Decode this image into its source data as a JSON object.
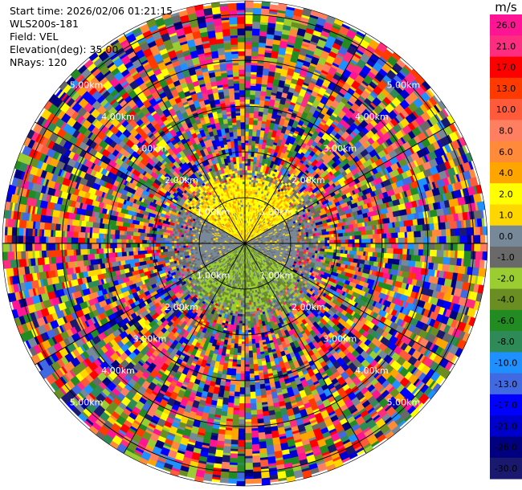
{
  "header": {
    "start_time": "Start time: 2026/02/06 01:21:15",
    "instrument": "WLS200s-181",
    "field": "Field: VEL",
    "elevation": "Elevation(deg): 35.00",
    "nrays": "NRays: 120"
  },
  "chart_data": {
    "type": "heatmap",
    "subtype": "radar-ppi",
    "max_range_km": 5.3,
    "range_rings": [
      {
        "range_km": 1.0,
        "label": "1.00km"
      },
      {
        "range_km": 2.0,
        "label": "2.00km"
      },
      {
        "range_km": 3.0,
        "label": "3.00km"
      },
      {
        "range_km": 4.0,
        "label": "4.00km"
      },
      {
        "range_km": 5.0,
        "label": "5.00km"
      }
    ],
    "n_rays": 120,
    "colorbar": {
      "unit": "m/s",
      "ticks": [
        "26.0",
        "21.0",
        "17.0",
        "13.0",
        "10.0",
        "8.0",
        "6.0",
        "4.0",
        "2.0",
        "1.0",
        "0.0",
        "-1.0",
        "-2.0",
        "-4.0",
        "-6.0",
        "-8.0",
        "-10.0",
        "-13.0",
        "-17.0",
        "-21.0",
        "-26.0",
        "-30.0"
      ],
      "colors": [
        "#ff1493",
        "#ff2d80",
        "#ff0000",
        "#ff3a00",
        "#ff5a3a",
        "#ff7f60",
        "#ff8a3a",
        "#ffa500",
        "#ffff00",
        "#ffd700",
        "#778899",
        "#696969",
        "#9acd32",
        "#6b8e23",
        "#228b22",
        "#2e8b57",
        "#1e90ff",
        "#4169e1",
        "#0000ff",
        "#0000cd",
        "#000080",
        "#191970"
      ]
    },
    "sectors": [
      {
        "azimuth_deg": [
          300,
          60
        ],
        "range_km": [
          0,
          1.6
        ],
        "mean_velocity": 3.0
      },
      {
        "azimuth_deg": [
          120,
          240
        ],
        "range_km": [
          0,
          1.6
        ],
        "mean_velocity": -2.5
      }
    ]
  }
}
